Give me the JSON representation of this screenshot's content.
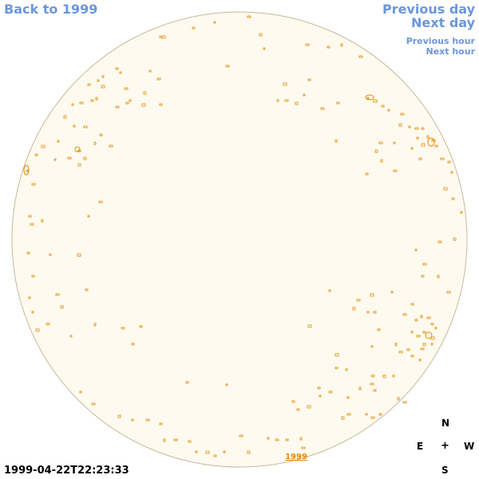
{
  "nav": {
    "back_label": "Back to 1999",
    "prev_day_label": "Previous day",
    "next_day_label": "Next day",
    "prev_hour_label": "Previous hour",
    "next_hour_label": "Next hour"
  },
  "sun": {
    "disk_color": "#fffaef",
    "limb_color": "#c8b89a",
    "feature_color": "#e08a00",
    "year_label": "1999"
  },
  "timestamp": "1999-04-22T22:23:33",
  "compass": {
    "north": "N",
    "east": "E",
    "center": "+",
    "west": "W",
    "south": "S"
  }
}
